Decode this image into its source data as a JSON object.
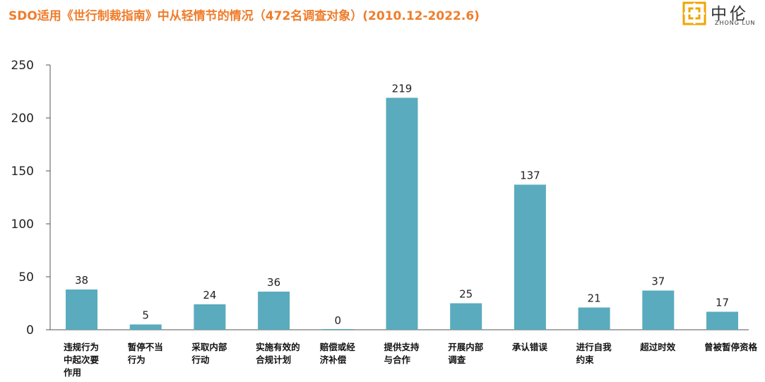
{
  "title": "SDO适用《世行制裁指南》中从轻情节的情况（472名调查对象）(2010.12-2022.6)",
  "logo": {
    "name": "中伦",
    "name_en": "ZHONG LUN",
    "color": "#f0a400"
  },
  "colors": {
    "bar": "#5aabbd",
    "title": "#ef7d2b"
  },
  "chart_data": {
    "type": "bar",
    "title": "SDO适用《世行制裁指南》中从轻情节的情况（472名调查对象）(2010.12-2022.6)",
    "xlabel": "",
    "ylabel": "",
    "ylim": [
      0,
      250
    ],
    "yticks": [
      0,
      50,
      100,
      150,
      200,
      250
    ],
    "grid": false,
    "categories": [
      "违规行为中起次要作用",
      "暂停不当行为",
      "采取内部行动",
      "实施有效的合规计划",
      "赔偿或经济补偿",
      "提供支持与合作",
      "开展内部调查",
      "承认错误",
      "进行自我约束",
      "超过时效",
      "曾被暂停资格"
    ],
    "category_lines": [
      [
        "违规行为",
        "中起次要",
        "作用"
      ],
      [
        "暂停不当",
        "行为"
      ],
      [
        "采取内部",
        "行动"
      ],
      [
        "实施有效的",
        "合规计划"
      ],
      [
        "赔偿或经",
        "济补偿"
      ],
      [
        "提供支持",
        "与合作"
      ],
      [
        "开展内部",
        "调查"
      ],
      [
        "承认错误"
      ],
      [
        "进行自我",
        "约束"
      ],
      [
        "超过时效"
      ],
      [
        "曾被暂停资格"
      ]
    ],
    "values": [
      38,
      5,
      24,
      36,
      0,
      219,
      25,
      137,
      21,
      37,
      17
    ]
  }
}
